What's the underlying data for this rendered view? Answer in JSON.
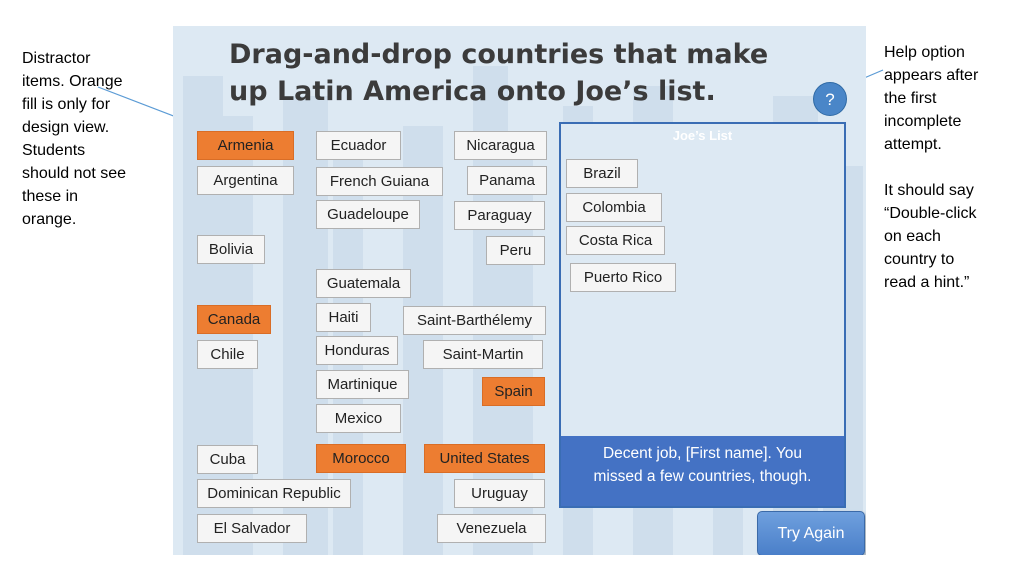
{
  "annotations": {
    "left": "Distractor\nitems. Orange\nfill is only for\ndesign view.\nStudents\nshould not see\nthese in\norange.",
    "right": "Help option\nappears after\nthe first\nincomplete\nattempt.\n\nIt should say\n“Double-click\non each\ncountry to\nread a hint.”"
  },
  "slide": {
    "title": "Drag-and-drop countries that make\nup Latin America onto Joe’s list.",
    "help_label": "?",
    "try_again_label": "Try Again"
  },
  "colors": {
    "distractor": "#ed7d31",
    "accent": "#4472c4",
    "slide_bg": "#dde9f3"
  },
  "tiles": [
    {
      "label": "Armenia",
      "distractor": true
    },
    {
      "label": "Argentina",
      "distractor": false
    },
    {
      "label": "Bolivia",
      "distractor": false
    },
    {
      "label": "Canada",
      "distractor": true
    },
    {
      "label": "Chile",
      "distractor": false
    },
    {
      "label": "Cuba",
      "distractor": false
    },
    {
      "label": "Dominican Republic",
      "distractor": false
    },
    {
      "label": "El Salvador",
      "distractor": false
    },
    {
      "label": "Ecuador",
      "distractor": false
    },
    {
      "label": "French Guiana",
      "distractor": false
    },
    {
      "label": "Guadeloupe",
      "distractor": false
    },
    {
      "label": "Guatemala",
      "distractor": false
    },
    {
      "label": "Haiti",
      "distractor": false
    },
    {
      "label": "Honduras",
      "distractor": false
    },
    {
      "label": "Martinique",
      "distractor": false
    },
    {
      "label": "Mexico",
      "distractor": false
    },
    {
      "label": "Morocco",
      "distractor": true
    },
    {
      "label": "Nicaragua",
      "distractor": false
    },
    {
      "label": "Panama",
      "distractor": false
    },
    {
      "label": "Paraguay",
      "distractor": false
    },
    {
      "label": "Peru",
      "distractor": false
    },
    {
      "label": "Saint-Barthélemy",
      "distractor": false
    },
    {
      "label": "Saint-Martin",
      "distractor": false
    },
    {
      "label": "Spain",
      "distractor": true
    },
    {
      "label": "United States",
      "distractor": true
    },
    {
      "label": "Uruguay",
      "distractor": false
    },
    {
      "label": "Venezuela",
      "distractor": false
    }
  ],
  "joes_list": {
    "title": "Joe’s List",
    "items": [
      "Brazil",
      "Colombia",
      "Costa Rica",
      "Puerto Rico"
    ],
    "feedback": "Decent job, [First name]. You\nmissed a few countries, though."
  }
}
